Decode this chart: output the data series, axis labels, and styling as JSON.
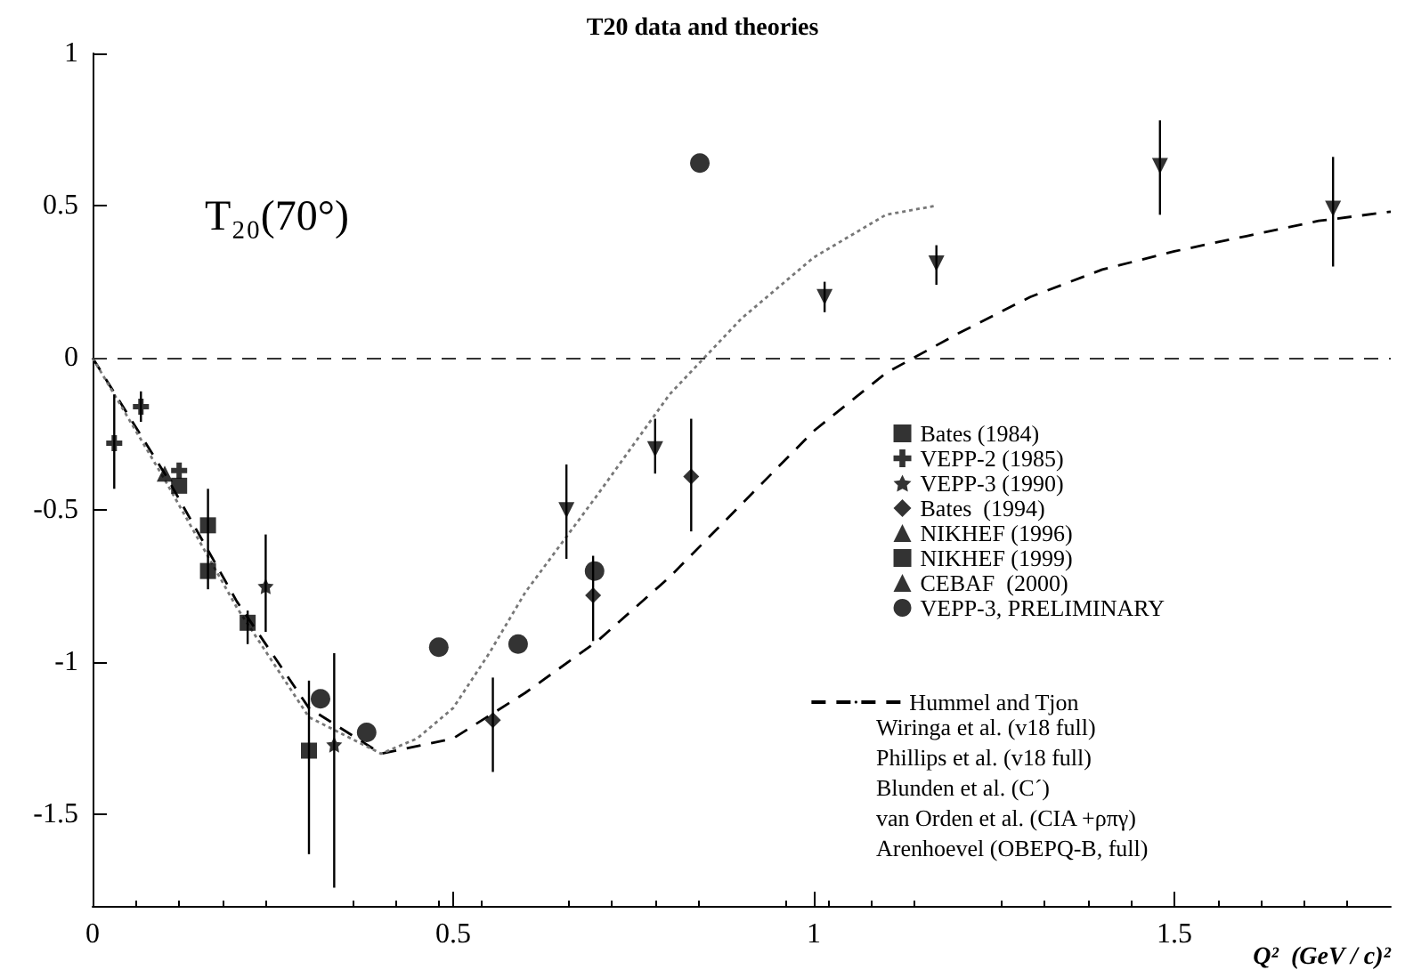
{
  "chart_data": {
    "type": "scatter",
    "title": "T20 data and theories",
    "xlabel": "Q²  (GeV / c)²",
    "xlim": [
      0,
      1.8
    ],
    "xticks": [
      0,
      0.5,
      1,
      1.5
    ],
    "ylim": [
      -1.8,
      1
    ],
    "yticks": [
      -1.5,
      -1,
      -0.5,
      0,
      0.5,
      1
    ],
    "grid": false,
    "legend": "bottom right",
    "series": [
      {
        "name": "Bates (1984)",
        "color": "#000000",
        "marker": "square",
        "x": [
          0.16
        ],
        "values": [
          -0.55
        ],
        "errors": [
          [
            -0.64,
            -0.43
          ]
        ]
      },
      {
        "name": "VEPP-2 (1985)",
        "color": "#000000",
        "marker": "cross",
        "x": [
          0.03,
          0.067,
          0.12
        ],
        "values": [
          -0.28,
          -0.16,
          -0.37
        ],
        "errors": [
          [
            -0.43,
            -0.12
          ],
          [
            -0.21,
            -0.11
          ],
          null
        ]
      },
      {
        "name": "VEPP-3 (1990)",
        "color": "#000000",
        "marker": "star",
        "x": [
          0.24,
          0.335
        ],
        "values": [
          -0.75,
          -1.27
        ],
        "errors": [
          [
            -0.9,
            -0.58
          ],
          [
            -1.74,
            -0.97
          ]
        ]
      },
      {
        "name": "Bates  (1994)",
        "color": "#000000",
        "marker": "diamond",
        "x": [
          0.555,
          0.694,
          0.83
        ],
        "values": [
          -1.19,
          -0.78,
          -0.39
        ],
        "errors": [
          [
            -1.36,
            -1.05
          ],
          [
            -0.93,
            -0.65
          ],
          [
            -0.57,
            -0.2
          ]
        ]
      },
      {
        "name": "NIKHEF (1996)",
        "color": "#000000",
        "marker": "triangle",
        "x": [
          0.1
        ],
        "values": [
          -0.38
        ]
      },
      {
        "name": "NIKHEF (1999)",
        "color": "#000000",
        "marker": "square",
        "x": [
          0.12,
          0.16,
          0.215,
          0.3
        ],
        "values": [
          -0.42,
          -0.7,
          -0.87,
          -1.29
        ],
        "errors": [
          null,
          [
            -0.76,
            -0.64
          ],
          [
            -0.94,
            -0.83
          ],
          [
            -1.63,
            -1.06
          ]
        ]
      },
      {
        "name": "CEBAF  (2000)",
        "color": "#000000",
        "marker": "triangle",
        "x": [
          0.657,
          0.78,
          1.015,
          1.17,
          1.48,
          1.72
        ],
        "values": [
          -0.5,
          -0.3,
          0.2,
          0.31,
          0.63,
          0.49
        ],
        "errors": [
          [
            -0.66,
            -0.35
          ],
          [
            -0.38,
            -0.2
          ],
          [
            0.15,
            0.25
          ],
          [
            0.24,
            0.37
          ],
          [
            0.47,
            0.78
          ],
          [
            0.3,
            0.66
          ]
        ]
      },
      {
        "name": "VEPP-3, PRELIMINARY",
        "color": "#000000",
        "marker": "circle",
        "x": [
          0.316,
          0.38,
          0.48,
          0.59,
          0.696,
          0.842
        ],
        "values": [
          -1.12,
          -1.23,
          -0.95,
          -0.94,
          -0.7,
          0.64
        ]
      },
      {
        "name": "Hummel and Tjon",
        "type": "line",
        "color": "#000000",
        "line_style": "dashed",
        "x": [
          0,
          0.1,
          0.2,
          0.3,
          0.4,
          0.5,
          0.6,
          0.7,
          0.8,
          0.9,
          1.0,
          1.1,
          1.2,
          1.3,
          1.4,
          1.5,
          1.6,
          1.7,
          1.8
        ],
        "values": [
          0,
          -0.38,
          -0.8,
          -1.15,
          -1.3,
          -1.25,
          -1.1,
          -0.93,
          -0.72,
          -0.48,
          -0.24,
          -0.05,
          0.08,
          0.2,
          0.29,
          0.35,
          0.4,
          0.45,
          0.48
        ]
      },
      {
        "type": "line",
        "color": "#777777",
        "line_style": "dotted",
        "x": [
          0,
          0.1,
          0.2,
          0.3,
          0.4,
          0.45,
          0.5,
          0.55,
          0.6,
          0.7,
          0.8,
          0.9,
          1.0,
          1.1,
          1.17
        ],
        "values": [
          0,
          -0.4,
          -0.82,
          -1.18,
          -1.3,
          -1.25,
          -1.15,
          -0.97,
          -0.77,
          -0.45,
          -0.12,
          0.13,
          0.33,
          0.47,
          0.5
        ]
      }
    ],
    "ref_lines": [
      {
        "axis": "y",
        "value": 0,
        "color": "#333333",
        "line_style": "dashed"
      }
    ],
    "annotations": [
      "T₂₀(70°)",
      "Wiringa et al. (v18 full)",
      "Phillips et al. (v18 full)",
      "Blunden et al. (C´)",
      "van Orden et al. (CIA +ρπγ)",
      "Arenhoevel (OBEPQ-B, full)"
    ]
  }
}
